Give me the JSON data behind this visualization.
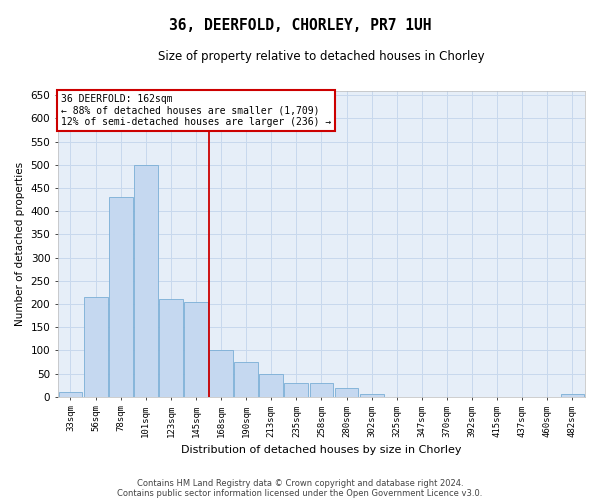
{
  "title": "36, DEERFOLD, CHORLEY, PR7 1UH",
  "subtitle": "Size of property relative to detached houses in Chorley",
  "xlabel": "Distribution of detached houses by size in Chorley",
  "ylabel": "Number of detached properties",
  "bin_labels": [
    "33sqm",
    "56sqm",
    "78sqm",
    "101sqm",
    "123sqm",
    "145sqm",
    "168sqm",
    "190sqm",
    "213sqm",
    "235sqm",
    "258sqm",
    "280sqm",
    "302sqm",
    "325sqm",
    "347sqm",
    "370sqm",
    "392sqm",
    "415sqm",
    "437sqm",
    "460sqm",
    "482sqm"
  ],
  "bar_values": [
    10,
    215,
    430,
    500,
    210,
    205,
    100,
    75,
    50,
    30,
    30,
    18,
    5,
    0,
    0,
    0,
    0,
    0,
    0,
    0,
    5
  ],
  "bar_color": "#c5d8f0",
  "bar_edge_color": "#7aaed6",
  "grid_color": "#c8d8ed",
  "background_color": "#e6eef8",
  "property_line_x": 5.5,
  "property_line_color": "#cc0000",
  "annotation_line1": "36 DEERFOLD: 162sqm",
  "annotation_line2": "← 88% of detached houses are smaller (1,709)",
  "annotation_line3": "12% of semi-detached houses are larger (236) →",
  "ylim": [
    0,
    660
  ],
  "yticks": [
    0,
    50,
    100,
    150,
    200,
    250,
    300,
    350,
    400,
    450,
    500,
    550,
    600,
    650
  ],
  "footer_line1": "Contains HM Land Registry data © Crown copyright and database right 2024.",
  "footer_line2": "Contains public sector information licensed under the Open Government Licence v3.0."
}
